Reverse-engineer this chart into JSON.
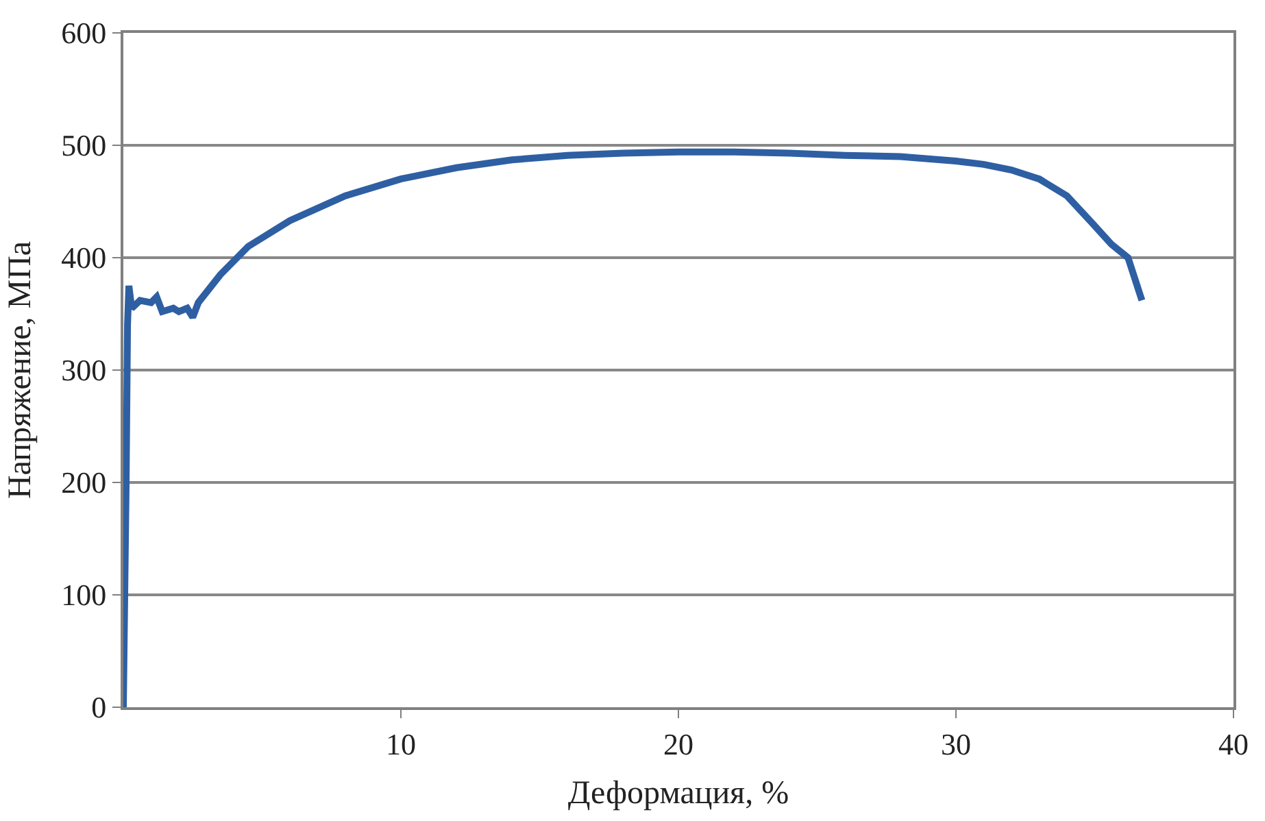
{
  "chart_data": {
    "type": "line",
    "xlabel": "Деформация, %",
    "ylabel": "Напряжение, МПа",
    "x": [
      0,
      0.05,
      0.1,
      0.15,
      0.2,
      0.3,
      0.6,
      1.0,
      1.2,
      1.4,
      1.8,
      2.0,
      2.3,
      2.5,
      2.7,
      3.5,
      4.5,
      6,
      8,
      10,
      12,
      14,
      16,
      18,
      20,
      22,
      24,
      26,
      28,
      30,
      31,
      32,
      33,
      34,
      34.9,
      35.6,
      36.2,
      36.7
    ],
    "series": [
      {
        "color": "#2e5fa3",
        "values": [
          0,
          100,
          200,
          340,
          375,
          355,
          362,
          360,
          365,
          352,
          355,
          352,
          355,
          347,
          360,
          385,
          410,
          433,
          455,
          470,
          480,
          487,
          491,
          493,
          494,
          494,
          493,
          491,
          490,
          486,
          483,
          478,
          470,
          455,
          431,
          412,
          400,
          362
        ]
      }
    ],
    "xlim": [
      0,
      40
    ],
    "ylim": [
      0,
      600
    ],
    "xticks": [
      10,
      20,
      30,
      40
    ],
    "yticks": [
      0,
      100,
      200,
      300,
      400,
      500,
      600
    ],
    "grid": "y",
    "legend": false,
    "marker": "none",
    "line_style": "solid"
  }
}
